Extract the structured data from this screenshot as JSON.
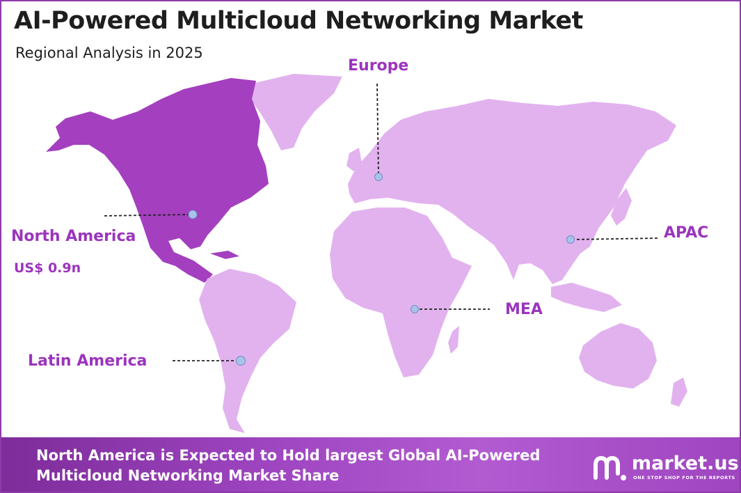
{
  "header": {
    "title": "AI-Powered Multicloud Networking Market",
    "subtitle": "Regional Analysis in 2025"
  },
  "colors": {
    "highlight_region": "#a43fbf",
    "other_regions": "#e2b2ef",
    "label": "#9b35bd",
    "marker": "#a9c2ea",
    "banner": "#9d44bf"
  },
  "regions": {
    "north_america": {
      "name": "North America",
      "value": "US$ 0.9n"
    },
    "europe": {
      "name": "Europe"
    },
    "apac": {
      "name": "APAC"
    },
    "mea": {
      "name": "MEA"
    },
    "latin_america": {
      "name": "Latin America"
    }
  },
  "banner": {
    "text": "North America is Expected to Hold largest Global AI-Powered Multicloud Networking Market Share"
  },
  "brand": {
    "name": "market.us",
    "tagline": "ONE STOP SHOP FOR THE REPORTS"
  }
}
